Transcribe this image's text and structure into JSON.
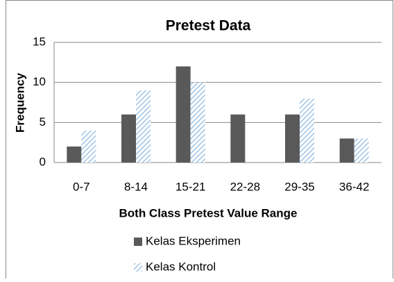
{
  "chart_data": {
    "type": "bar",
    "title": "Pretest Data",
    "xlabel": "Both Class Pretest Value Range",
    "ylabel": "Frequency",
    "categories": [
      "0-7",
      "8-14",
      "15-21",
      "22-28",
      "29-35",
      "36-42"
    ],
    "series": [
      {
        "name": "Kelas Eksperimen",
        "color": "#595959",
        "values": [
          2,
          6,
          12,
          6,
          6,
          3
        ]
      },
      {
        "name": "Kelas Kontrol",
        "color": "#9dc3e6",
        "hatch": true,
        "values": [
          4,
          9,
          10,
          0,
          8,
          3
        ]
      }
    ],
    "ylim": [
      0,
      15
    ],
    "yticks": [
      0,
      5,
      10,
      15
    ],
    "grid": true
  }
}
